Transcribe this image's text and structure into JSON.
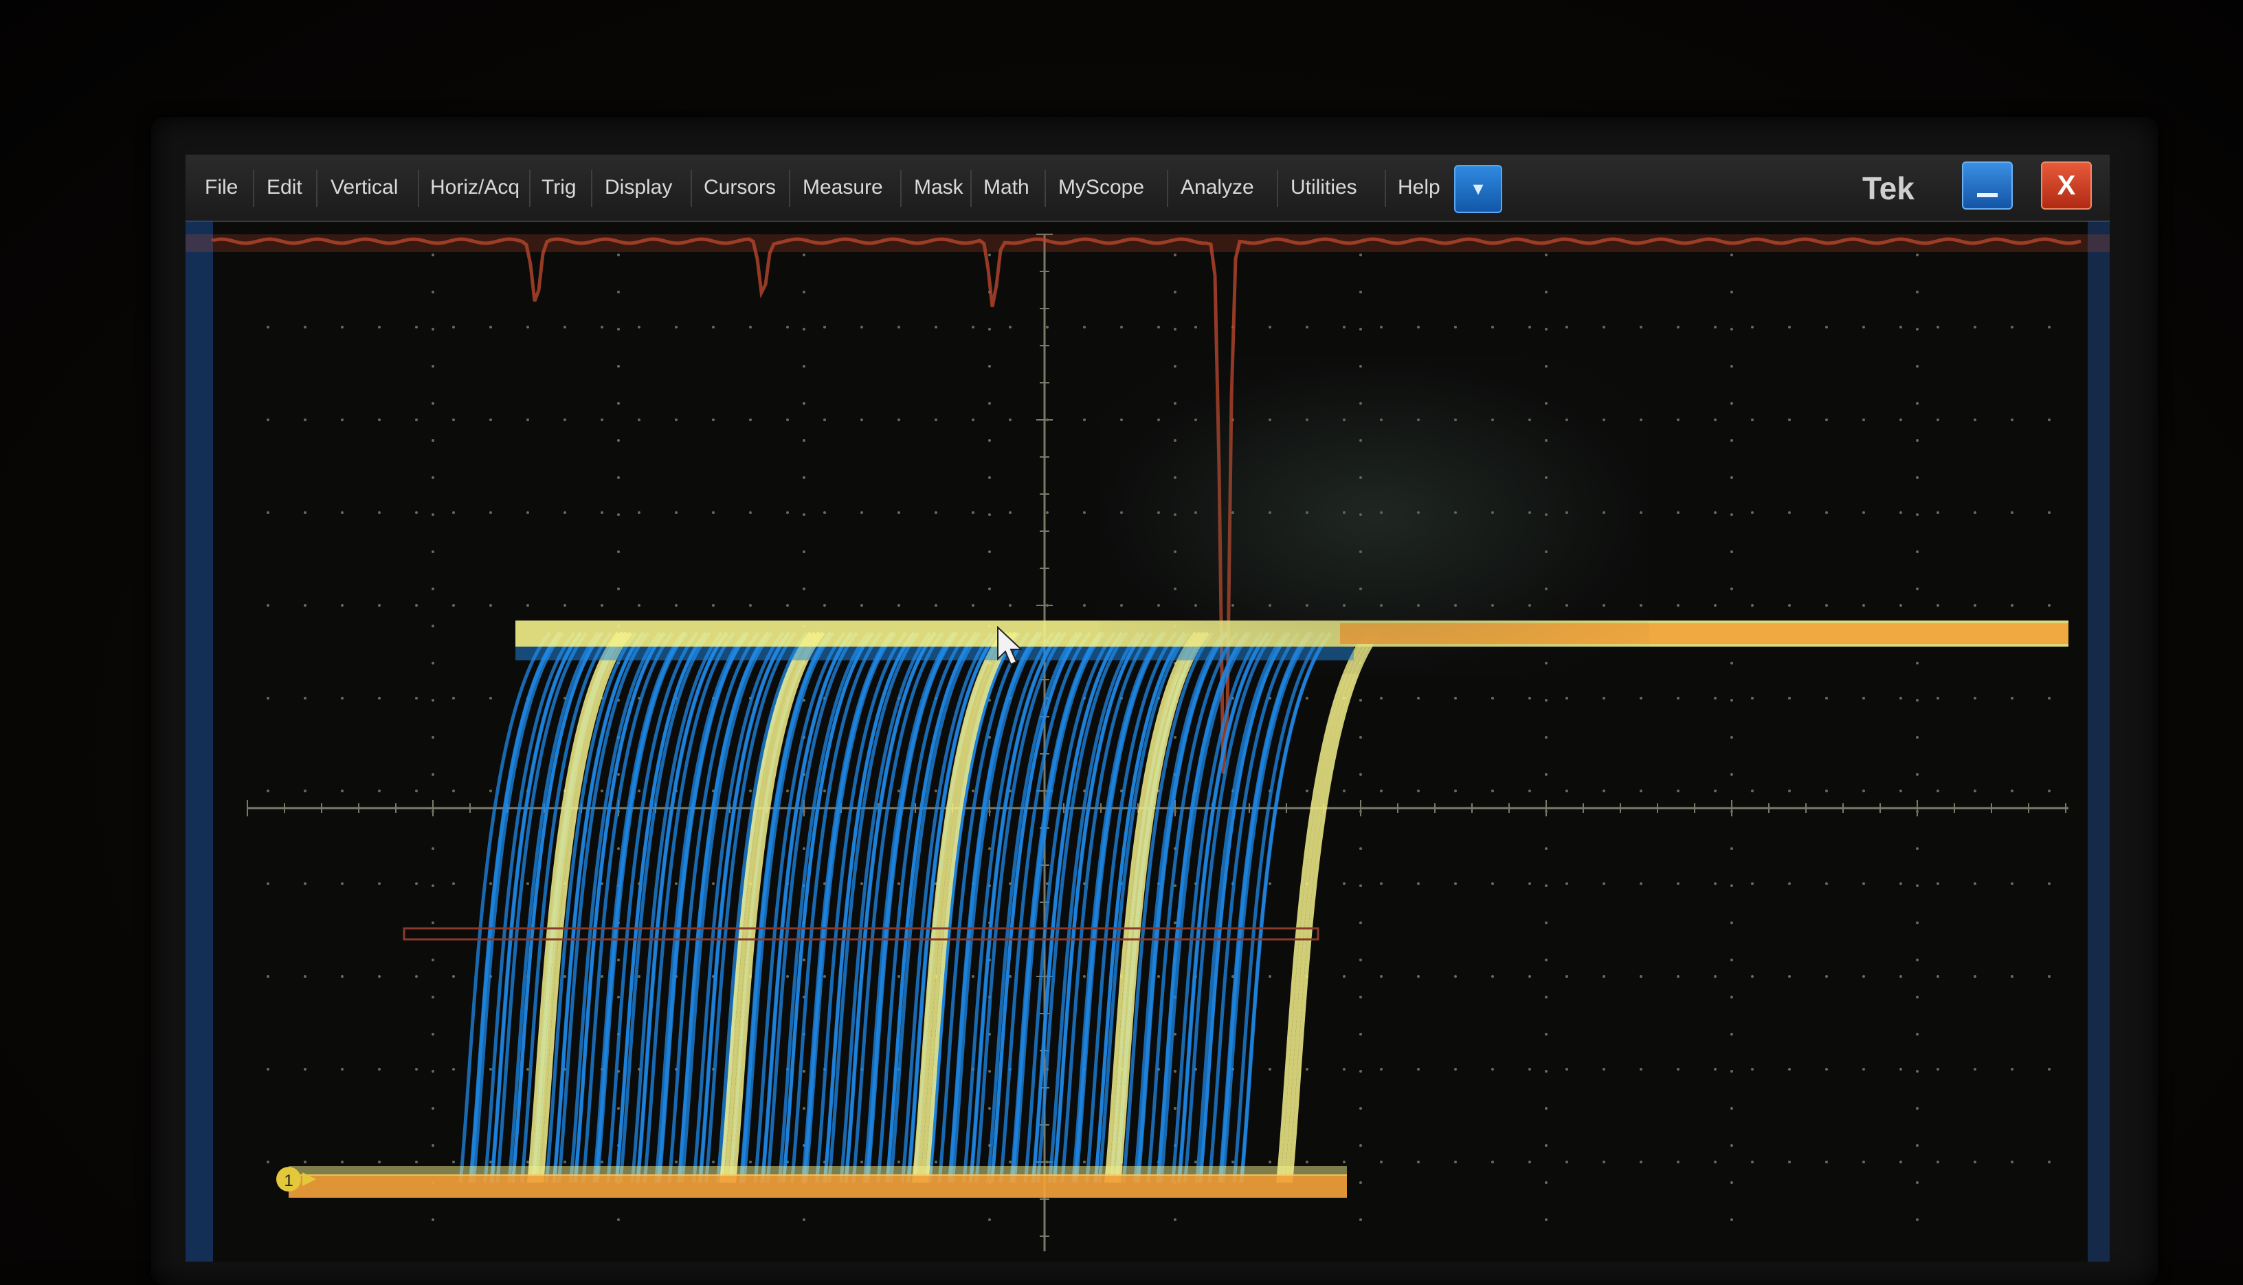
{
  "menubar": {
    "items": [
      {
        "label": "File"
      },
      {
        "label": "Edit"
      },
      {
        "label": "Vertical"
      },
      {
        "label": "Horiz/Acq"
      },
      {
        "label": "Trig"
      },
      {
        "label": "Display"
      },
      {
        "label": "Cursors"
      },
      {
        "label": "Measure"
      },
      {
        "label": "Mask"
      },
      {
        "label": "Math"
      },
      {
        "label": "MyScope"
      },
      {
        "label": "Analyze"
      },
      {
        "label": "Utilities"
      },
      {
        "label": "Help"
      }
    ],
    "dropdown_icon": "chevron-down-icon",
    "dropdown_glyph": "▾",
    "brand": "Tek",
    "minimize_icon": "minimize-icon",
    "close_icon": "close-icon",
    "close_glyph": "X"
  },
  "display": {
    "channel_marker": "1",
    "colors": {
      "menu_bg": "#222222",
      "button_blue": "#1f6fc8",
      "close_red": "#d8431f",
      "graticule": "#7a7a6a",
      "waveform_orange": "#f2a23a",
      "waveform_yellow": "#f3f08a",
      "waveform_blue": "#1f8ae8",
      "trace_red": "#b8462a"
    }
  }
}
